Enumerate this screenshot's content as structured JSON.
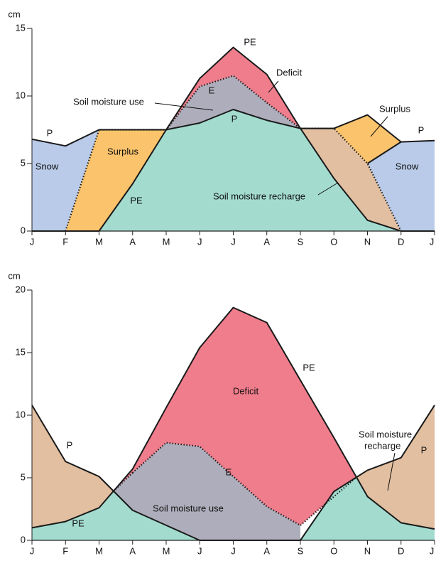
{
  "chart_data": [
    {
      "type": "area",
      "ylabel": "cm",
      "categories": [
        "J",
        "F",
        "M",
        "A",
        "M",
        "J",
        "J",
        "A",
        "S",
        "O",
        "N",
        "D",
        "J"
      ],
      "ylim": [
        0,
        15
      ],
      "yticks": [
        0,
        5,
        10,
        15
      ],
      "series": [
        {
          "name": "P",
          "color": "#1a1a1a",
          "style": "solid",
          "values": [
            6.8,
            6.3,
            7.5,
            7.5,
            7.5,
            8.0,
            9.0,
            8.2,
            7.6,
            7.6,
            8.6,
            6.6,
            6.7
          ]
        },
        {
          "name": "PE",
          "color": "#1a1a1a",
          "style": "solid",
          "values": [
            0,
            0,
            0,
            3.5,
            7.5,
            11.3,
            13.6,
            11.6,
            7.6,
            3.9,
            0.8,
            0,
            0
          ]
        },
        {
          "name": "E",
          "color": "#1a1a1a",
          "style": "dotted",
          "values": [
            null,
            0,
            7.5,
            7.5,
            7.5,
            10.7,
            11.5,
            9.5,
            7.6,
            7.6,
            5.0,
            0,
            null
          ]
        }
      ],
      "areas": [
        {
          "color": "#b9cbe9"
        },
        {
          "color": "#fbc36b"
        },
        {
          "color": "#a3dccf"
        },
        {
          "color": "#aeadbb"
        },
        {
          "color": "#f07d8c"
        },
        {
          "color": "#e2bfa0"
        },
        {
          "color": "#fbc36b"
        },
        {
          "color": "#b9cbe9"
        }
      ],
      "annotations": [
        "Snow",
        "Surplus",
        "Soil moisture use",
        "Deficit",
        "Surplus",
        "Snow",
        "Soil moisture recharge"
      ]
    },
    {
      "type": "area",
      "ylabel": "cm",
      "categories": [
        "J",
        "F",
        "M",
        "A",
        "M",
        "J",
        "J",
        "A",
        "S",
        "O",
        "N",
        "D",
        "J"
      ],
      "ylim": [
        0,
        20
      ],
      "yticks": [
        0,
        5,
        10,
        15,
        20
      ],
      "series": [
        {
          "name": "P",
          "color": "#1a1a1a",
          "style": "solid",
          "values": [
            10.8,
            6.3,
            5.1,
            2.4,
            1.2,
            0,
            0,
            0,
            0,
            3.9,
            5.6,
            6.6,
            10.8
          ]
        },
        {
          "name": "PE",
          "color": "#1a1a1a",
          "style": "solid",
          "values": [
            1.0,
            1.5,
            2.6,
            5.7,
            10.6,
            15.4,
            18.6,
            17.4,
            12.8,
            8.2,
            3.5,
            1.4,
            0.9
          ]
        },
        {
          "name": "E",
          "color": "#1a1a1a",
          "style": "dotted",
          "values": [
            null,
            null,
            null,
            5.4,
            7.8,
            7.5,
            5.1,
            2.7,
            1.2,
            null,
            null,
            null,
            null
          ]
        }
      ],
      "areas": [
        {
          "color": "#e2bfa0"
        },
        {
          "color": "#a3dccf"
        },
        {
          "color": "#aeadbb"
        },
        {
          "color": "#f07d8c"
        },
        {
          "color": "#a3dccf"
        },
        {
          "color": "#e2bfa0"
        }
      ],
      "annotations": [
        "Soil moisture use",
        "Deficit",
        "Soil moisture",
        "recharge"
      ]
    }
  ]
}
